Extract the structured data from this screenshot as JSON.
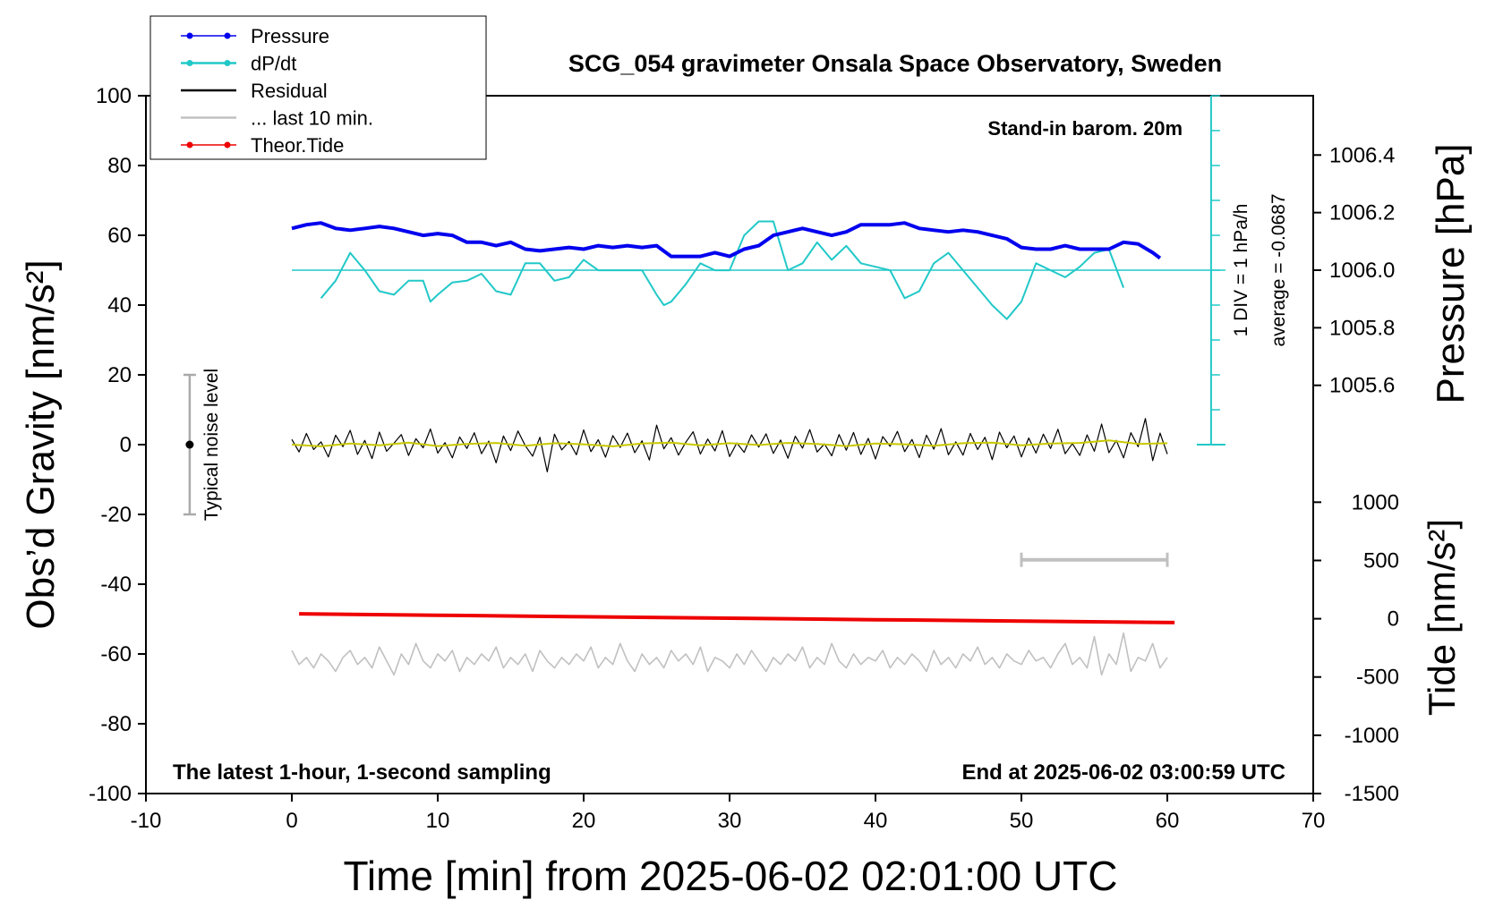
{
  "chart_data": {
    "type": "line",
    "title": "SCG_054 gravimeter Onsala Space Observatory, Sweden",
    "xlabel": "Time [min] from 2025-06-02 02:01:00 UTC",
    "ylabel": "Obs’d Gravity [nm/s²]",
    "y2label": "Pressure [hPa]",
    "y3label": "Tide [nm/s²]",
    "note_top": "Stand-in barom. 20m",
    "note_div": "1 DIV = 1 hPa/h",
    "note_average": "average = -0.0687",
    "note_bottom_left": "The latest 1-hour, 1-second sampling",
    "note_bottom_right": "End at 2025-06-02 03:00:59 UTC",
    "xlim": [
      -10,
      70
    ],
    "xticks": [
      -10,
      0,
      10,
      20,
      30,
      40,
      50,
      60,
      70
    ],
    "ylim": [
      -100,
      100
    ],
    "yticks": [
      -100,
      -80,
      -60,
      -40,
      -20,
      0,
      20,
      40,
      60,
      80,
      100
    ],
    "y2lim": [
      1004.182,
      1006.606
    ],
    "y2ticks": [
      1005.6,
      1005.8,
      {
        "value": 1006,
        "label": "1006.0"
      },
      1006.2,
      1006.4
    ],
    "y3lim": [
      -1500,
      4488
    ],
    "y3ticks": [
      -1500,
      -1000,
      -500,
      0,
      500,
      1000
    ],
    "dpdt_lim": [
      -5.0687,
      4.9313
    ],
    "dpdt_axis_x": 63,
    "dpdt_average": -0.0687,
    "dpdt_ticks": [
      -5.0687,
      -4.0687,
      -3.0687,
      -2.0687,
      -1.0687,
      -0.0687,
      0.9313,
      1.9313,
      2.9313,
      3.9313,
      4.9313
    ],
    "noise_bar": {
      "label": "Typical noise level",
      "x": -7,
      "value": 0,
      "error": 20
    },
    "scale_bar": {
      "x": [
        50,
        60
      ],
      "y": -33,
      "color": "#c0c0c0"
    },
    "x": [
      0,
      0.5,
      1,
      1.5,
      2,
      2.5,
      3,
      3.5,
      4,
      4.5,
      5,
      5.5,
      6,
      6.5,
      7,
      7.5,
      8,
      8.5,
      9,
      9.5,
      10,
      10.5,
      11,
      11.5,
      12,
      12.5,
      13,
      13.5,
      14,
      14.5,
      15,
      15.5,
      16,
      16.5,
      17,
      17.5,
      18,
      18.5,
      19,
      19.5,
      20,
      20.5,
      21,
      21.5,
      22,
      22.5,
      23,
      23.5,
      24,
      24.5,
      25,
      25.5,
      26,
      26.5,
      27,
      27.5,
      28,
      28.5,
      29,
      29.5,
      30,
      30.5,
      31,
      31.5,
      32,
      32.5,
      33,
      33.5,
      34,
      34.5,
      35,
      35.5,
      36,
      36.5,
      37,
      37.5,
      38,
      38.5,
      39,
      39.5,
      40,
      40.5,
      41,
      41.5,
      42,
      42.5,
      43,
      43.5,
      44,
      44.5,
      45,
      45.5,
      46,
      46.5,
      47,
      47.5,
      48,
      48.5,
      49,
      49.5,
      50,
      50.5,
      51,
      51.5,
      52,
      52.5,
      53,
      53.5,
      54,
      54.5,
      55,
      55.5,
      56,
      56.5,
      57,
      57.5,
      58,
      58.5,
      59,
      59.5,
      60
    ],
    "series": [
      {
        "name": "Pressure",
        "color": "#0000ee",
        "axis": "y2",
        "width": 4,
        "marker": "dot",
        "x": [
          0,
          1,
          2,
          3,
          4,
          5,
          6,
          7,
          8,
          9,
          10,
          11,
          12,
          13,
          14,
          15,
          16,
          17,
          18,
          19,
          20,
          21,
          22,
          23,
          24,
          25,
          26,
          27,
          28,
          29,
          30,
          31,
          32,
          33,
          34,
          35,
          36,
          37,
          38,
          39,
          40,
          41,
          42,
          43,
          44,
          45,
          46,
          47,
          48,
          49,
          50,
          51,
          52,
          53,
          54,
          55,
          56,
          57,
          58,
          59,
          59.5
        ],
        "values": [
          1006.145,
          1006.158,
          1006.164,
          1006.145,
          1006.139,
          1006.145,
          1006.152,
          1006.145,
          1006.133,
          1006.121,
          1006.127,
          1006.121,
          1006.097,
          1006.097,
          1006.085,
          1006.097,
          1006.073,
          1006.067,
          1006.073,
          1006.079,
          1006.073,
          1006.085,
          1006.079,
          1006.085,
          1006.079,
          1006.085,
          1006.048,
          1006.048,
          1006.048,
          1006.061,
          1006.048,
          1006.073,
          1006.085,
          1006.121,
          1006.133,
          1006.145,
          1006.133,
          1006.121,
          1006.133,
          1006.158,
          1006.158,
          1006.158,
          1006.164,
          1006.145,
          1006.139,
          1006.133,
          1006.139,
          1006.133,
          1006.121,
          1006.109,
          1006.079,
          1006.073,
          1006.073,
          1006.085,
          1006.073,
          1006.073,
          1006.073,
          1006.097,
          1006.091,
          1006.061,
          1006.042
        ]
      },
      {
        "name": "dP/dt",
        "color": "#22c8c8",
        "axis": "dpdt",
        "width": 2,
        "marker": "dot",
        "x": [
          2,
          3,
          4,
          5,
          6,
          7,
          8,
          9,
          9.5,
          10,
          11,
          12,
          13,
          14,
          15,
          16,
          17,
          18,
          19,
          20,
          21,
          22,
          23,
          24,
          25,
          25.5,
          26,
          27,
          28,
          29,
          30,
          31,
          32,
          33,
          34,
          35,
          36,
          37,
          38,
          39,
          40,
          41,
          42,
          43,
          44,
          45,
          46,
          47,
          48,
          49,
          50,
          51,
          52,
          53,
          54,
          55,
          56,
          57
        ],
        "values": [
          -0.87,
          -0.37,
          0.43,
          -0.07,
          -0.67,
          -0.77,
          -0.37,
          -0.37,
          -0.97,
          -0.77,
          -0.42,
          -0.37,
          -0.17,
          -0.67,
          -0.77,
          0.13,
          0.13,
          -0.37,
          -0.27,
          0.23,
          -0.07,
          -0.07,
          -0.07,
          -0.07,
          -0.77,
          -1.07,
          -0.97,
          -0.47,
          0.13,
          -0.07,
          -0.07,
          0.93,
          1.33,
          1.33,
          -0.07,
          0.13,
          0.73,
          0.23,
          0.63,
          0.13,
          0.03,
          -0.07,
          -0.87,
          -0.67,
          0.13,
          0.43,
          -0.07,
          -0.57,
          -1.07,
          -1.47,
          -0.97,
          0.13,
          -0.07,
          -0.27,
          0.03,
          0.43,
          0.53,
          -0.57
        ]
      },
      {
        "name": "Residual",
        "color": "#000000",
        "axis": "y",
        "width": 1.2,
        "values": [
          1.5,
          -2.1,
          3.2,
          -1.4,
          0.8,
          -3.5,
          2.7,
          -0.6,
          4.1,
          -2.8,
          1.2,
          -4.0,
          3.6,
          -1.9,
          0.4,
          2.9,
          -3.1,
          1.7,
          -0.9,
          4.5,
          -2.4,
          0.6,
          -3.8,
          2.2,
          -1.1,
          3.4,
          -2.6,
          1.0,
          -5.2,
          2.5,
          -1.7,
          3.9,
          -0.3,
          -3.3,
          2.1,
          -7.8,
          3.0,
          -1.5,
          0.9,
          -2.9,
          4.2,
          -2.0,
          1.4,
          -3.6,
          2.6,
          -0.8,
          3.3,
          -2.3,
          1.1,
          -4.4,
          5.6,
          -1.2,
          2.0,
          -3.0,
          0.7,
          3.7,
          -2.7,
          1.6,
          -1.8,
          4.0,
          -3.4,
          0.5,
          -2.2,
          2.8,
          -0.7,
          3.1,
          -2.5,
          1.3,
          -3.9,
          2.4,
          -1.0,
          4.3,
          -2.1,
          0.2,
          -3.2,
          2.9,
          -1.6,
          3.5,
          -2.8,
          1.8,
          -4.1,
          2.3,
          -0.5,
          3.8,
          -2.0,
          1.5,
          -3.7,
          2.7,
          -1.3,
          4.6,
          -2.9,
          0.8,
          -3.0,
          3.2,
          -1.4,
          2.1,
          -4.3,
          3.6,
          -0.9,
          2.5,
          -3.5,
          1.9,
          -2.4,
          3.0,
          -1.1,
          4.4,
          -2.6,
          0.3,
          -3.1,
          2.8,
          -1.9,
          5.9,
          -2.3,
          1.2,
          -3.8,
          3.4,
          -0.6,
          7.5,
          -4.6,
          3.3,
          -2.7
        ]
      },
      {
        "name": "... last 10 min.",
        "color": "#c0c0c0",
        "axis": "y",
        "width": 1.6,
        "values": [
          -59,
          -63,
          -61,
          -64,
          -60,
          -62,
          -65,
          -61,
          -59,
          -63,
          -61,
          -64,
          -58,
          -62,
          -66,
          -60,
          -63,
          -57,
          -62,
          -64,
          -60,
          -62,
          -59,
          -65,
          -61,
          -63,
          -60,
          -62,
          -58,
          -64,
          -61,
          -63,
          -60,
          -65,
          -59,
          -62,
          -64,
          -61,
          -63,
          -60,
          -62,
          -58,
          -64,
          -61,
          -63,
          -57,
          -62,
          -65,
          -60,
          -63,
          -61,
          -64,
          -59,
          -62,
          -60,
          -63,
          -58,
          -65,
          -61,
          -62,
          -64,
          -60,
          -63,
          -59,
          -62,
          -65,
          -61,
          -63,
          -60,
          -62,
          -58,
          -64,
          -61,
          -63,
          -57,
          -62,
          -64,
          -60,
          -63,
          -61,
          -62,
          -59,
          -64,
          -61,
          -63,
          -60,
          -62,
          -65,
          -59,
          -63,
          -61,
          -64,
          -60,
          -62,
          -58,
          -63,
          -61,
          -64,
          -60,
          -62,
          -63,
          -59,
          -62,
          -61,
          -64,
          -60,
          -57,
          -63,
          -61,
          -64,
          -55,
          -66,
          -60,
          -63,
          -54,
          -65,
          -61,
          -62,
          -57,
          -64,
          -61
        ]
      },
      {
        "color": "#c8c800",
        "axis": "y",
        "width": 2,
        "x": [
          0,
          2,
          4,
          6,
          8,
          10,
          12,
          14,
          16,
          18,
          20,
          22,
          24,
          26,
          28,
          30,
          32,
          34,
          36,
          38,
          40,
          42,
          44,
          46,
          48,
          50,
          52,
          54,
          56,
          58,
          60
        ],
        "values": [
          0,
          -0.5,
          0.3,
          -0.2,
          0.6,
          -0.4,
          0.2,
          0.5,
          -0.3,
          0.4,
          0.1,
          -0.5,
          0.3,
          0.6,
          -0.2,
          0.4,
          -0.1,
          0.5,
          0.2,
          -0.4,
          0.3,
          0.1,
          -0.3,
          0.4,
          0.6,
          -0.2,
          0.3,
          0.5,
          1.2,
          0.2,
          0.4
        ]
      },
      {
        "name": "Theor.Tide",
        "color": "#ee0000",
        "axis": "y3",
        "width": 4,
        "marker": "dot",
        "x": [
          0.5,
          10,
          20,
          30,
          40,
          50,
          60.5
        ],
        "values": [
          42,
          30,
          17,
          5,
          -8,
          -20,
          -33
        ]
      }
    ]
  }
}
